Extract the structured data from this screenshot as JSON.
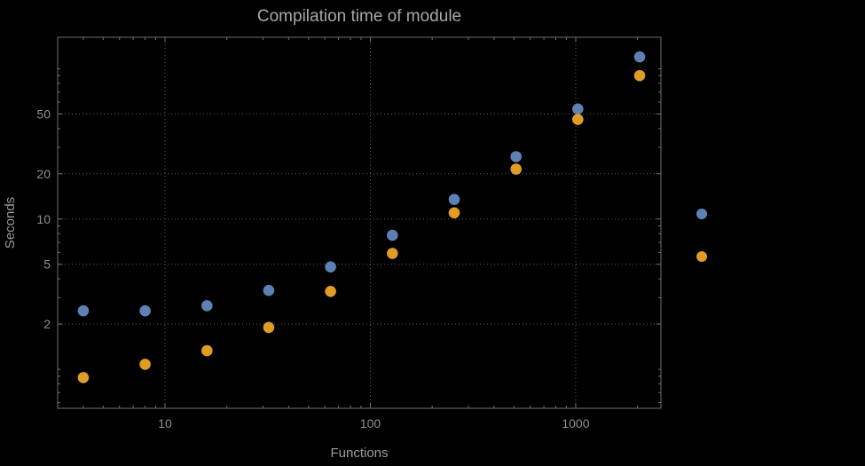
{
  "page": {
    "background": "#000000"
  },
  "chart_data": {
    "type": "scatter",
    "title": "Compilation time of module",
    "xlabel": "Functions",
    "ylabel": "Seconds",
    "x_scale": "log",
    "y_scale": "log",
    "xlim": [
      3,
      2600
    ],
    "ylim": [
      0.55,
      162
    ],
    "grid": true,
    "x_ticks": [
      10,
      100,
      1000
    ],
    "x_tick_labels": [
      "10",
      "100",
      "1000"
    ],
    "y_ticks": [
      2,
      5,
      10,
      20,
      50
    ],
    "y_tick_labels": [
      "2",
      "5",
      "10",
      "20",
      "50"
    ],
    "x": [
      4,
      8,
      16,
      32,
      64,
      128,
      256,
      512,
      1024,
      2048
    ],
    "series": [
      {
        "name": "blue",
        "color": "#5E81B5",
        "values": [
          2.45,
          2.45,
          2.65,
          3.35,
          4.8,
          7.8,
          13.5,
          26,
          54,
          120
        ]
      },
      {
        "name": "orange",
        "color": "#E09C24",
        "values": [
          0.88,
          1.08,
          1.33,
          1.9,
          3.3,
          5.9,
          11,
          21.5,
          46,
          90
        ]
      }
    ],
    "legend": {
      "position": "right-outside",
      "markers": [
        {
          "name": "blue",
          "color": "#5E81B5"
        },
        {
          "name": "orange",
          "color": "#E09C24"
        }
      ]
    }
  }
}
